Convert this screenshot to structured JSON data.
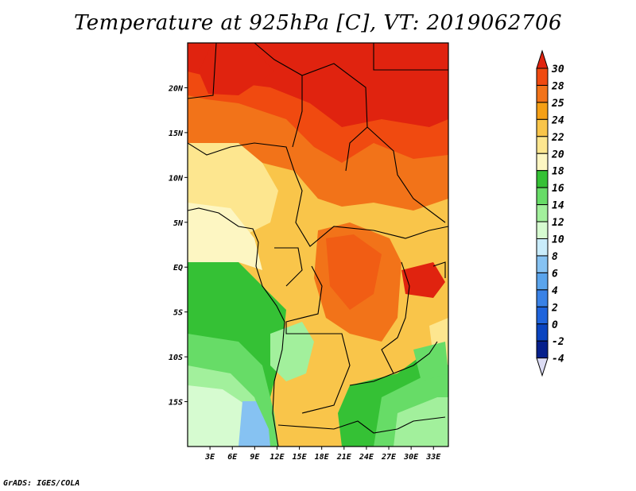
{
  "title": "Temperature at 925hPa [C], VT: 2019062706",
  "footer": "GrADS: IGES/COLA",
  "map": {
    "lon_range": [
      0,
      35
    ],
    "lat_range": [
      -20,
      25
    ],
    "x_ticks": [
      "3E",
      "6E",
      "9E",
      "12E",
      "15E",
      "18E",
      "21E",
      "24E",
      "27E",
      "30E",
      "33E"
    ],
    "x_tick_values": [
      3,
      6,
      9,
      12,
      15,
      18,
      21,
      24,
      27,
      30,
      33
    ],
    "y_ticks": [
      "20N",
      "15N",
      "10N",
      "5N",
      "EQ",
      "5S",
      "10S",
      "15S"
    ],
    "y_tick_values": [
      20,
      15,
      10,
      5,
      0,
      -5,
      -10,
      -15
    ]
  },
  "colorbar": {
    "labels": [
      "30",
      "28",
      "25",
      "24",
      "22",
      "20",
      "18",
      "16",
      "14",
      "12",
      "10",
      "8",
      "6",
      "4",
      "2",
      "0",
      "-2",
      "-4"
    ],
    "colors": [
      "#e0230f",
      "#f04a10",
      "#f27319",
      "#f5a016",
      "#f9c54a",
      "#fde68f",
      "#fdf6c2",
      "#35c135",
      "#67dc67",
      "#a2f09c",
      "#d6fbd0",
      "#c9ecfb",
      "#86c2f2",
      "#5aa4ec",
      "#3a82e6",
      "#1f64dc",
      "#0a44c0",
      "#06208c",
      "#0a0a5c"
    ],
    "top_color": "#e0230f",
    "bottom_color": "#dcdcf4"
  }
}
